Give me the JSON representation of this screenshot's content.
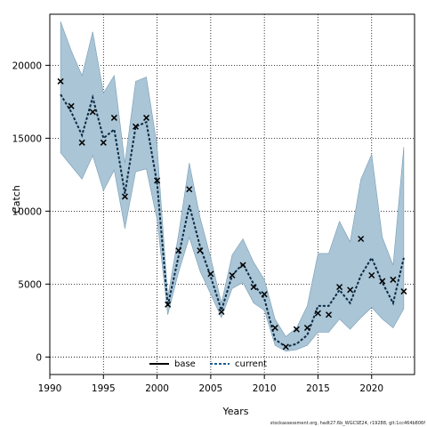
{
  "chart_data": {
    "type": "line",
    "xlabel": "Years",
    "ylabel": "Catch",
    "xlim": [
      1990,
      2024
    ],
    "ylim": [
      -1200,
      23500
    ],
    "xticks": [
      1990,
      1995,
      2000,
      2005,
      2010,
      2015,
      2020
    ],
    "yticks": [
      0,
      5000,
      10000,
      15000,
      20000
    ],
    "grid": true,
    "legend_position": "bottom-center",
    "footnote": "stockassessment.org, hadt27.6b_WGCSE24, r19288, git:1cc464b806f",
    "colors": {
      "band": "#a9c5d6",
      "band_edge": "#7a9db5",
      "base": "#000000",
      "current": "#1a5c8f"
    },
    "series": [
      {
        "name": "base",
        "style": "solid",
        "x": [],
        "values": []
      },
      {
        "name": "current",
        "style": "dashed",
        "x": [
          1991,
          1992,
          1993,
          1994,
          1995,
          1996,
          1997,
          1998,
          1999,
          2000,
          2001,
          2002,
          2003,
          2004,
          2005,
          2006,
          2007,
          2008,
          2009,
          2010,
          2011,
          2012,
          2013,
          2014,
          2015,
          2016,
          2017,
          2018,
          2019,
          2020,
          2021,
          2022,
          2023
        ],
        "values": [
          18000,
          16800,
          15200,
          17800,
          15000,
          15600,
          11200,
          15800,
          16100,
          11900,
          3500,
          6900,
          10400,
          7600,
          5500,
          3200,
          5600,
          6400,
          5000,
          4000,
          1200,
          700,
          900,
          1500,
          3500,
          3500,
          4600,
          3700,
          5600,
          6800,
          5100,
          3700,
          6800
        ],
        "lower": [
          14000,
          13100,
          12200,
          13800,
          11400,
          12800,
          8800,
          12700,
          12900,
          9400,
          2900,
          5800,
          8200,
          5900,
          4300,
          2700,
          4700,
          5100,
          3700,
          3200,
          800,
          400,
          500,
          800,
          1700,
          1700,
          2600,
          1900,
          2700,
          3400,
          2600,
          2000,
          3300
        ],
        "upper": [
          23000,
          21000,
          19300,
          22300,
          18100,
          19300,
          13300,
          18900,
          19200,
          14500,
          4100,
          8400,
          13300,
          9600,
          6800,
          3700,
          7000,
          8100,
          6500,
          5300,
          2600,
          1400,
          2000,
          3500,
          7100,
          7100,
          9300,
          7900,
          12200,
          13900,
          8200,
          6300,
          14400
        ]
      }
    ],
    "observed": {
      "x": [
        1991,
        1992,
        1993,
        1994,
        1995,
        1996,
        1997,
        1998,
        1999,
        2000,
        2001,
        2002,
        2003,
        2004,
        2005,
        2006,
        2007,
        2008,
        2009,
        2010,
        2011,
        2012,
        2013,
        2014,
        2015,
        2016,
        2017,
        2018,
        2019,
        2020,
        2021,
        2022,
        2023
      ],
      "values": [
        18900,
        17200,
        14700,
        16800,
        14700,
        16400,
        11000,
        15800,
        16400,
        12100,
        3600,
        7300,
        11500,
        7300,
        5700,
        3100,
        5600,
        6300,
        4800,
        4300,
        2000,
        700,
        1900,
        2000,
        3000,
        2900,
        4800,
        4600,
        8100,
        5600,
        5200,
        5300,
        4500
      ]
    }
  }
}
